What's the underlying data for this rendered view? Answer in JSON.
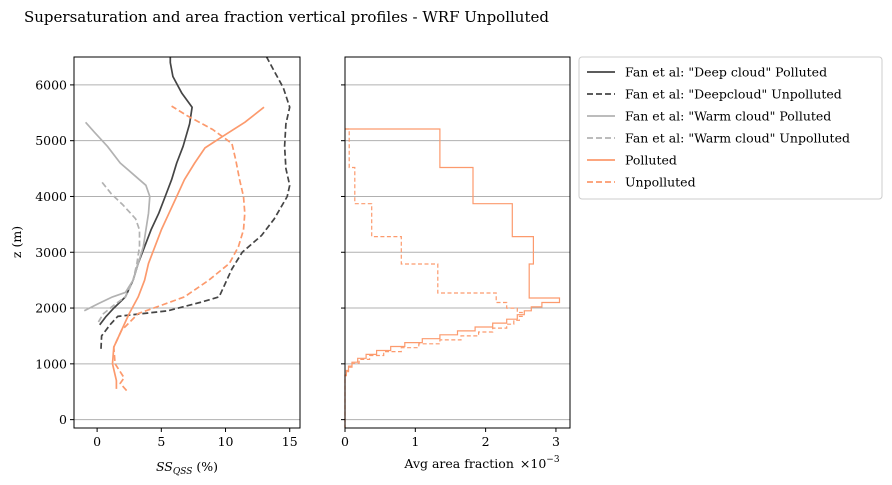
{
  "figure": {
    "title": "Supersaturation and area fraction vertical profiles - WRF Unpolluted"
  },
  "chart_data": [
    {
      "type": "line",
      "xlabel_main": "SS",
      "xlabel_sub": "QSS",
      "xlabel_unit": " (%)",
      "ylabel": "z (m)",
      "xlim": [
        -1.8,
        15.8
      ],
      "ylim": [
        -150,
        6500
      ],
      "xticks": [
        "0",
        "5",
        "10",
        "15"
      ],
      "xtick_values": [
        0,
        5,
        10,
        15
      ],
      "yticks": [
        "0",
        "1000",
        "2000",
        "3000",
        "4000",
        "5000",
        "6000"
      ],
      "ytick_values": [
        0,
        1000,
        2000,
        3000,
        4000,
        5000,
        6000
      ],
      "grid": "y",
      "series": [
        {
          "name": "Fan et al: \"Deep cloud\" Polluted",
          "color": "#454545",
          "dash": "solid",
          "points": [
            [
              0.2,
              1700
            ],
            [
              0.7,
              1850
            ],
            [
              1.3,
              2000
            ],
            [
              2.2,
              2200
            ],
            [
              2.8,
              2500
            ],
            [
              3.2,
              2800
            ],
            [
              3.7,
              3100
            ],
            [
              4.2,
              3400
            ],
            [
              4.8,
              3700
            ],
            [
              5.3,
              4000
            ],
            [
              5.8,
              4300
            ],
            [
              6.2,
              4600
            ],
            [
              6.7,
              4900
            ],
            [
              7.2,
              5300
            ],
            [
              7.4,
              5600
            ],
            [
              6.6,
              5850
            ],
            [
              5.9,
              6150
            ],
            [
              5.7,
              6400
            ],
            [
              5.7,
              6500
            ]
          ]
        },
        {
          "name": "Fan et al: \"Deepcloud\" Unpolluted",
          "color": "#454545",
          "dash": "dashed",
          "points": [
            [
              0.3,
              1270
            ],
            [
              0.35,
              1500
            ],
            [
              1.0,
              1700
            ],
            [
              1.6,
              1850
            ],
            [
              5.5,
              1950
            ],
            [
              8.0,
              2100
            ],
            [
              9.5,
              2200
            ],
            [
              10.5,
              2700
            ],
            [
              11.3,
              3000
            ],
            [
              12.8,
              3300
            ],
            [
              13.8,
              3600
            ],
            [
              14.8,
              4000
            ],
            [
              15.0,
              4200
            ],
            [
              14.7,
              4500
            ],
            [
              14.6,
              4900
            ],
            [
              14.7,
              5300
            ],
            [
              15.0,
              5600
            ],
            [
              14.5,
              5950
            ],
            [
              13.9,
              6200
            ],
            [
              13.2,
              6500
            ]
          ]
        },
        {
          "name": "Fan et al: \"Warm cloud\" Polluted",
          "color": "#b2b2b2",
          "dash": "solid",
          "points": [
            [
              -1.0,
              1950
            ],
            [
              0.1,
              2080
            ],
            [
              1.2,
              2200
            ],
            [
              2.2,
              2280
            ],
            [
              2.8,
              2500
            ],
            [
              3.2,
              2800
            ],
            [
              3.6,
              3100
            ],
            [
              3.8,
              3400
            ],
            [
              4.0,
              3700
            ],
            [
              4.1,
              4000
            ],
            [
              3.8,
              4200
            ],
            [
              2.8,
              4400
            ],
            [
              1.8,
              4600
            ],
            [
              0.8,
              4900
            ],
            [
              -0.2,
              5150
            ],
            [
              -0.9,
              5330
            ]
          ]
        },
        {
          "name": "Fan et al: \"Warm cloud\" Unpolluted",
          "color": "#b2b2b2",
          "dash": "dashed",
          "points": [
            [
              0.1,
              1750
            ],
            [
              0.5,
              1900
            ],
            [
              1.3,
              2050
            ],
            [
              2.2,
              2200
            ],
            [
              2.8,
              2500
            ],
            [
              3.1,
              2800
            ],
            [
              3.3,
              3100
            ],
            [
              3.3,
              3400
            ],
            [
              3.0,
              3600
            ],
            [
              2.0,
              3850
            ],
            [
              1.1,
              4050
            ],
            [
              0.3,
              4280
            ]
          ]
        },
        {
          "name": "Polluted",
          "color": "#fc9a6d",
          "dash": "solid",
          "points": [
            [
              1.5,
              550
            ],
            [
              1.5,
              700
            ],
            [
              1.2,
              1000
            ],
            [
              1.3,
              1300
            ],
            [
              1.9,
              1600
            ],
            [
              2.5,
              1900
            ],
            [
              3.2,
              2200
            ],
            [
              3.7,
              2500
            ],
            [
              4.0,
              2800
            ],
            [
              4.5,
              3100
            ],
            [
              5.0,
              3400
            ],
            [
              5.6,
              3700
            ],
            [
              6.2,
              4000
            ],
            [
              6.8,
              4300
            ],
            [
              7.6,
              4600
            ],
            [
              8.4,
              4870
            ],
            [
              9.8,
              5080
            ],
            [
              11.5,
              5330
            ],
            [
              13.0,
              5600
            ]
          ]
        },
        {
          "name": "Unpolluted",
          "color": "#fc9a6d",
          "dash": "dashed",
          "points": [
            [
              2.3,
              520
            ],
            [
              1.8,
              650
            ],
            [
              2.1,
              750
            ],
            [
              1.4,
              1000
            ],
            [
              1.3,
              1300
            ],
            [
              1.9,
              1600
            ],
            [
              3.2,
              1900
            ],
            [
              5.0,
              2050
            ],
            [
              6.8,
              2200
            ],
            [
              8.7,
              2500
            ],
            [
              10.3,
              2800
            ],
            [
              11.0,
              3100
            ],
            [
              11.4,
              3400
            ],
            [
              11.5,
              3700
            ],
            [
              11.4,
              4000
            ],
            [
              11.1,
              4300
            ],
            [
              10.8,
              4650
            ],
            [
              10.5,
              4950
            ],
            [
              9.0,
              5200
            ],
            [
              7.0,
              5450
            ],
            [
              5.8,
              5620
            ]
          ]
        }
      ]
    },
    {
      "type": "step",
      "xlabel": "Avg area fraction",
      "x_scale_label": "×10",
      "x_scale_exp": "−3",
      "xlim": [
        0,
        3.2
      ],
      "ylim": [
        -150,
        6500
      ],
      "xticks": [
        "0",
        "1",
        "2",
        "3"
      ],
      "xtick_values": [
        0,
        1,
        2,
        3
      ],
      "yticks_labels_hidden": true,
      "grid": "y",
      "series": [
        {
          "name": "Polluted",
          "color": "#fc9a6d",
          "dash": "solid",
          "points": [
            [
              0,
              5210
            ],
            [
              1.35,
              5210
            ],
            [
              1.35,
              4520
            ],
            [
              1.82,
              4520
            ],
            [
              1.82,
              3870
            ],
            [
              2.38,
              3870
            ],
            [
              2.38,
              3280
            ],
            [
              2.68,
              3280
            ],
            [
              2.68,
              2790
            ],
            [
              2.62,
              2790
            ],
            [
              2.62,
              2180
            ],
            [
              3.05,
              2180
            ],
            [
              3.05,
              2100
            ],
            [
              2.8,
              2100
            ],
            [
              2.8,
              2020
            ],
            [
              2.65,
              2020
            ],
            [
              2.65,
              1950
            ],
            [
              2.55,
              1950
            ],
            [
              2.55,
              1880
            ],
            [
              2.45,
              1880
            ],
            [
              2.45,
              1800
            ],
            [
              2.3,
              1800
            ],
            [
              2.3,
              1730
            ],
            [
              2.1,
              1730
            ],
            [
              2.1,
              1660
            ],
            [
              1.85,
              1660
            ],
            [
              1.85,
              1590
            ],
            [
              1.6,
              1590
            ],
            [
              1.6,
              1520
            ],
            [
              1.35,
              1520
            ],
            [
              1.35,
              1450
            ],
            [
              1.1,
              1450
            ],
            [
              1.1,
              1380
            ],
            [
              0.85,
              1380
            ],
            [
              0.85,
              1310
            ],
            [
              0.65,
              1310
            ],
            [
              0.65,
              1240
            ],
            [
              0.45,
              1240
            ],
            [
              0.45,
              1170
            ],
            [
              0.3,
              1170
            ],
            [
              0.3,
              1100
            ],
            [
              0.18,
              1100
            ],
            [
              0.18,
              1030
            ],
            [
              0.1,
              1030
            ],
            [
              0.1,
              960
            ],
            [
              0.05,
              960
            ],
            [
              0.05,
              880
            ],
            [
              0.02,
              880
            ],
            [
              0.02,
              800
            ],
            [
              0,
              800
            ],
            [
              0,
              -150
            ]
          ]
        },
        {
          "name": "Unpolluted",
          "color": "#fc9a6d",
          "dash": "dashed",
          "points": [
            [
              0,
              5210
            ],
            [
              0.06,
              5210
            ],
            [
              0.06,
              4520
            ],
            [
              0.14,
              4520
            ],
            [
              0.14,
              3870
            ],
            [
              0.38,
              3870
            ],
            [
              0.38,
              3280
            ],
            [
              0.8,
              3280
            ],
            [
              0.8,
              2790
            ],
            [
              1.32,
              2790
            ],
            [
              1.32,
              2270
            ],
            [
              2.15,
              2270
            ],
            [
              2.15,
              2100
            ],
            [
              2.3,
              2100
            ],
            [
              2.3,
              2000
            ],
            [
              2.45,
              2000
            ],
            [
              2.45,
              1920
            ],
            [
              2.52,
              1920
            ],
            [
              2.52,
              1850
            ],
            [
              2.48,
              1850
            ],
            [
              2.48,
              1780
            ],
            [
              2.4,
              1780
            ],
            [
              2.4,
              1710
            ],
            [
              2.3,
              1710
            ],
            [
              2.3,
              1640
            ],
            [
              2.1,
              1640
            ],
            [
              2.1,
              1570
            ],
            [
              1.9,
              1570
            ],
            [
              1.9,
              1500
            ],
            [
              1.65,
              1500
            ],
            [
              1.65,
              1430
            ],
            [
              1.35,
              1430
            ],
            [
              1.35,
              1360
            ],
            [
              1.05,
              1360
            ],
            [
              1.05,
              1290
            ],
            [
              0.8,
              1290
            ],
            [
              0.8,
              1220
            ],
            [
              0.55,
              1220
            ],
            [
              0.55,
              1150
            ],
            [
              0.35,
              1150
            ],
            [
              0.35,
              1080
            ],
            [
              0.2,
              1080
            ],
            [
              0.2,
              1010
            ],
            [
              0.1,
              1010
            ],
            [
              0.1,
              940
            ],
            [
              0.05,
              940
            ],
            [
              0.05,
              860
            ],
            [
              0.02,
              860
            ],
            [
              0.02,
              790
            ],
            [
              0,
              790
            ],
            [
              0,
              -150
            ]
          ]
        }
      ]
    }
  ],
  "legend": {
    "placement": "outside-right",
    "entries": [
      {
        "label": "Fan et al: \"Deep cloud\" Polluted",
        "color": "#454545",
        "dash": "solid"
      },
      {
        "label": "Fan et al: \"Deepcloud\" Unpolluted",
        "color": "#454545",
        "dash": "dashed"
      },
      {
        "label": "Fan et al: \"Warm cloud\" Polluted",
        "color": "#b2b2b2",
        "dash": "solid"
      },
      {
        "label": "Fan et al: \"Warm cloud\" Unpolluted",
        "color": "#b2b2b2",
        "dash": "dashed"
      },
      {
        "label": "Polluted",
        "color": "#fc9a6d",
        "dash": "solid"
      },
      {
        "label": "Unpolluted",
        "color": "#fc9a6d",
        "dash": "dashed"
      }
    ]
  }
}
